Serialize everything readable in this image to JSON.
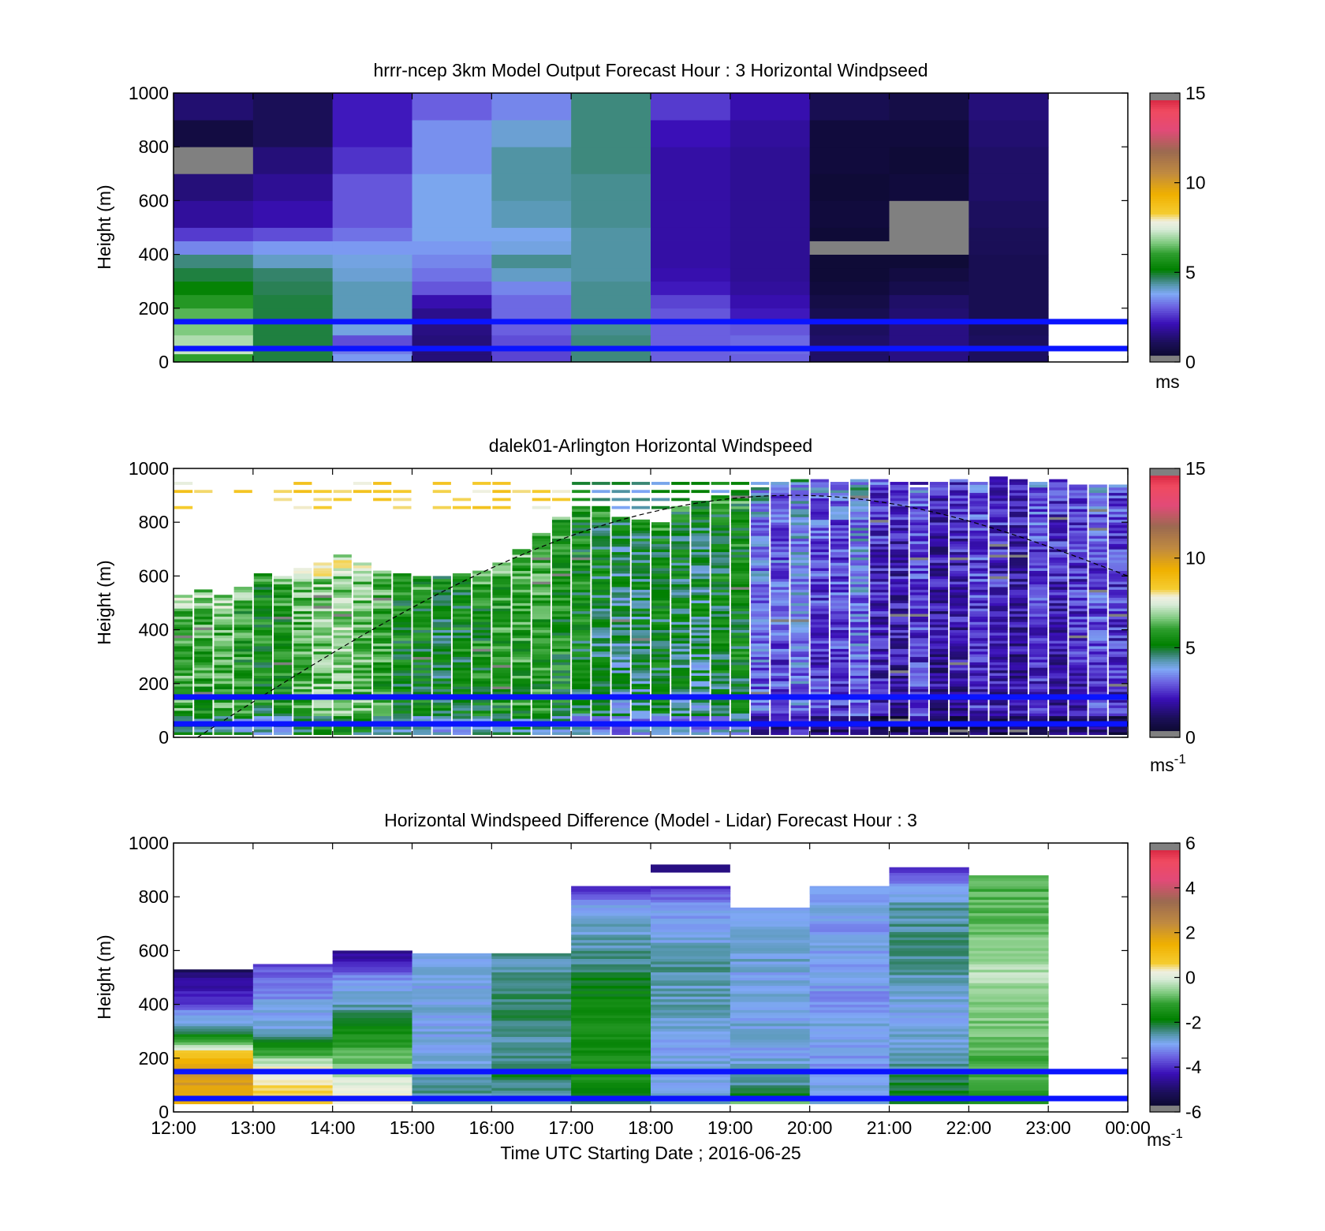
{
  "figure": {
    "xlabel": "Time UTC  Starting Date ; 2016-06-25",
    "x_ticks": [
      "12:00",
      "13:00",
      "14:00",
      "15:00",
      "16:00",
      "17:00",
      "18:00",
      "19:00",
      "20:00",
      "21:00",
      "22:00",
      "23:00",
      "00:00"
    ]
  },
  "chart_data": [
    {
      "type": "heatmap",
      "title": "hrrr-ncep 3km Model Output   Forecast Hour : 3 Horizontal Windpseed",
      "ylabel": "Height (m)",
      "xlim": [
        "12:00",
        "00:00"
      ],
      "ylim": [
        0,
        1000
      ],
      "y_ticks": [
        "0",
        "200",
        "400",
        "600",
        "800",
        "1000"
      ],
      "colorbar": {
        "ticks": [
          "0",
          "5",
          "10",
          "15"
        ],
        "range": [
          0,
          15
        ],
        "unit": "ms",
        "unit_sup": ""
      },
      "reference_lines_m": [
        50,
        150
      ],
      "x_hours": [
        12,
        13,
        14,
        15,
        16,
        17,
        18,
        19,
        20,
        21,
        22
      ],
      "y_bins_m": [
        0,
        30,
        60,
        100,
        150,
        200,
        250,
        300,
        350,
        400,
        450,
        500,
        600,
        700,
        800,
        900,
        1000
      ],
      "values": [
        [
          6.0,
          4.8,
          3.6,
          1.4,
          2.7,
          4.5,
          3.0,
          3.0,
          1.2,
          1.5,
          1.1
        ],
        [
          7.2,
          4.8,
          3.3,
          1.4,
          2.7,
          4.5,
          3.0,
          3.1,
          1.2,
          1.5,
          1.1
        ],
        [
          7.0,
          4.8,
          2.8,
          1.4,
          2.8,
          4.5,
          3.0,
          3.1,
          1.2,
          1.5,
          1.1
        ],
        [
          6.6,
          4.8,
          3.9,
          1.5,
          3.0,
          4.4,
          3.0,
          2.9,
          1.1,
          1.5,
          1.0
        ],
        [
          6.3,
          4.8,
          4.2,
          1.6,
          3.1,
          4.4,
          2.9,
          2.2,
          0.9,
          1.3,
          0.9
        ],
        [
          5.8,
          4.8,
          4.2,
          2.0,
          3.1,
          4.4,
          2.7,
          2.0,
          0.7,
          1.2,
          0.9
        ],
        [
          5.2,
          4.7,
          4.2,
          2.9,
          3.4,
          4.4,
          2.2,
          1.8,
          0.5,
          0.8,
          0.9
        ],
        [
          4.8,
          4.6,
          4.0,
          3.2,
          4.1,
          4.3,
          2.0,
          1.7,
          0.4,
          0.6,
          0.9
        ],
        [
          4.5,
          4.1,
          3.9,
          3.4,
          4.4,
          4.3,
          1.9,
          1.7,
          0.4,
          0.4,
          0.9
        ],
        [
          3.4,
          3.6,
          3.6,
          3.6,
          3.9,
          4.3,
          1.9,
          1.7,
          -1,
          -1,
          1.0
        ],
        [
          2.6,
          2.8,
          3.2,
          3.8,
          3.8,
          4.3,
          1.9,
          1.7,
          0.4,
          -1,
          1.0
        ],
        [
          1.8,
          2.0,
          2.9,
          3.8,
          4.2,
          4.4,
          1.9,
          1.7,
          0.5,
          -1,
          1.1
        ],
        [
          1.4,
          1.7,
          2.9,
          3.8,
          4.3,
          4.4,
          1.9,
          1.7,
          0.4,
          0.5,
          1.2
        ],
        [
          -1,
          1.4,
          2.5,
          3.5,
          4.3,
          4.5,
          1.9,
          1.7,
          0.5,
          0.4,
          1.2
        ],
        [
          0.6,
          1.0,
          2.2,
          3.5,
          4.0,
          4.5,
          2.1,
          1.8,
          0.5,
          0.5,
          1.3
        ],
        [
          1.3,
          1.0,
          2.2,
          3.0,
          3.4,
          4.5,
          2.6,
          2.0,
          0.9,
          0.7,
          1.4
        ]
      ]
    },
    {
      "type": "heatmap",
      "title": "dalek01-Arlington  Horizontal Windspeed",
      "ylabel": "Height (m)",
      "xlim": [
        "12:00",
        "00:00"
      ],
      "ylim": [
        0,
        1000
      ],
      "y_ticks": [
        "0",
        "200",
        "400",
        "600",
        "800",
        "1000"
      ],
      "colorbar": {
        "ticks": [
          "0",
          "5",
          "10",
          "15"
        ],
        "range": [
          0,
          15
        ],
        "unit": "ms",
        "unit_sup": "-1"
      },
      "reference_lines_m": [
        50,
        150
      ],
      "time_step_min": 15,
      "gate_m": 10,
      "profile_top_m": [
        530,
        545,
        525,
        560,
        610,
        600,
        630,
        650,
        680,
        650,
        620,
        610,
        600,
        600,
        610,
        620,
        650,
        700,
        760,
        820,
        860,
        860,
        820,
        810,
        800,
        860,
        880,
        900,
        920,
        930,
        950,
        960,
        960,
        950,
        960,
        960,
        950,
        930,
        950,
        960,
        950,
        970,
        960,
        950,
        960,
        940,
        940,
        940
      ],
      "profile_mean_ms": [
        6.0,
        5.8,
        5.9,
        5.5,
        5.2,
        5.4,
        6.0,
        6.3,
        6.5,
        6.2,
        5.8,
        5.2,
        5.0,
        4.8,
        5.0,
        5.3,
        5.5,
        5.6,
        5.6,
        5.3,
        5.0,
        4.6,
        4.2,
        4.5,
        4.8,
        4.6,
        4.4,
        4.8,
        5.0,
        3.0,
        2.6,
        3.1,
        2.4,
        2.5,
        3.0,
        2.0,
        1.8,
        2.4,
        1.6,
        1.8,
        2.3,
        2.0,
        1.7,
        2.4,
        2.0,
        2.1,
        2.5,
        2.2
      ],
      "aloft_layer_m": [
        850,
        960
      ],
      "aloft_mean_ms": 7.5,
      "sunset_curve": {
        "start_hour": 12.3,
        "start_m": 0,
        "peak_hour": 19.8,
        "peak_m": 900,
        "end_hour": 24.0,
        "end_m": 600
      }
    },
    {
      "type": "heatmap",
      "title": "Horizontal Windspeed Difference (Model - Lidar) Forecast Hour : 3",
      "ylabel": "Height (m)",
      "xlim": [
        "12:00",
        "00:00"
      ],
      "ylim": [
        0,
        1000
      ],
      "y_ticks": [
        "0",
        "200",
        "400",
        "600",
        "800",
        "1000"
      ],
      "colorbar": {
        "ticks": [
          "-6",
          "-4",
          "-2",
          "0",
          "2",
          "4",
          "6"
        ],
        "range": [
          -6,
          6
        ],
        "unit": "ms",
        "unit_sup": "-1"
      },
      "reference_lines_m": [
        50,
        150
      ],
      "x_hours": [
        12,
        13,
        14,
        15,
        16,
        17,
        18,
        19,
        20,
        21,
        22
      ],
      "column_top_m": [
        530,
        545,
        600,
        590,
        590,
        835,
        835,
        760,
        835,
        910,
        880
      ],
      "column_bottom_m": [
        30,
        30,
        30,
        30,
        30,
        30,
        30,
        30,
        30,
        30,
        30
      ],
      "column_profiles": [
        [
          1.6,
          1.8,
          2.0,
          1.8,
          0.8,
          -1.0,
          -2.4,
          -3.0,
          -3.8,
          -4.2,
          -4.6,
          -5.4
        ],
        [
          0.8,
          0.6,
          0.4,
          0.0,
          -1.2,
          -2.2,
          -2.8,
          -3.0,
          -3.1,
          -3.3,
          -3.6,
          -3.8
        ],
        [
          0.4,
          0.2,
          -0.4,
          -0.8,
          -1.2,
          -1.6,
          -2.2,
          -2.7,
          -3.0,
          -3.3,
          -4.2,
          -4.6
        ],
        [
          -2.4,
          -2.6,
          -2.8,
          -2.9,
          -3.0,
          -2.9,
          -3.0,
          -2.9,
          -3.0,
          -2.9,
          -3.0,
          -3.0
        ],
        [
          -2.6,
          -2.4,
          -2.2,
          -2.4,
          -2.6,
          -2.5,
          -2.3,
          -2.4,
          -2.3,
          -2.4,
          -2.6,
          -2.4
        ],
        [
          -2.1,
          -1.6,
          -1.4,
          -1.8,
          -1.5,
          -1.7,
          -2.0,
          -2.4,
          -2.6,
          -2.8,
          -3.0,
          -4.2
        ],
        [
          -2.6,
          -3.0,
          -2.9,
          -3.0,
          -2.8,
          -2.6,
          -2.7,
          -2.5,
          -2.8,
          -3.0,
          -3.2,
          -4.0
        ],
        [
          -1.0,
          -2.6,
          -2.8,
          -3.0,
          -2.8,
          -3.0,
          -2.9,
          -3.0,
          -2.8,
          -3.0,
          -2.9,
          -3.0
        ],
        [
          -2.8,
          -3.0,
          -3.1,
          -3.0,
          -2.9,
          -3.3,
          -3.1,
          -3.0,
          -3.0,
          -3.2,
          -3.0,
          -3.0
        ],
        [
          -2.0,
          -2.2,
          -2.6,
          -2.8,
          -2.9,
          -2.8,
          -2.6,
          -2.4,
          -2.5,
          -2.6,
          -3.0,
          -4.4
        ],
        [
          -1.4,
          -1.2,
          -1.0,
          -0.8,
          -0.7,
          -0.6,
          -0.4,
          -0.5,
          -0.8,
          -0.9,
          -1.0,
          -1.1
        ]
      ],
      "isolated_segments": [
        {
          "hour": 18,
          "bottom_m": 890,
          "top_m": 920,
          "value": -4.8
        },
        {
          "hour": 20,
          "bottom_m": 810,
          "top_m": 835,
          "value": -3.0
        }
      ]
    }
  ]
}
